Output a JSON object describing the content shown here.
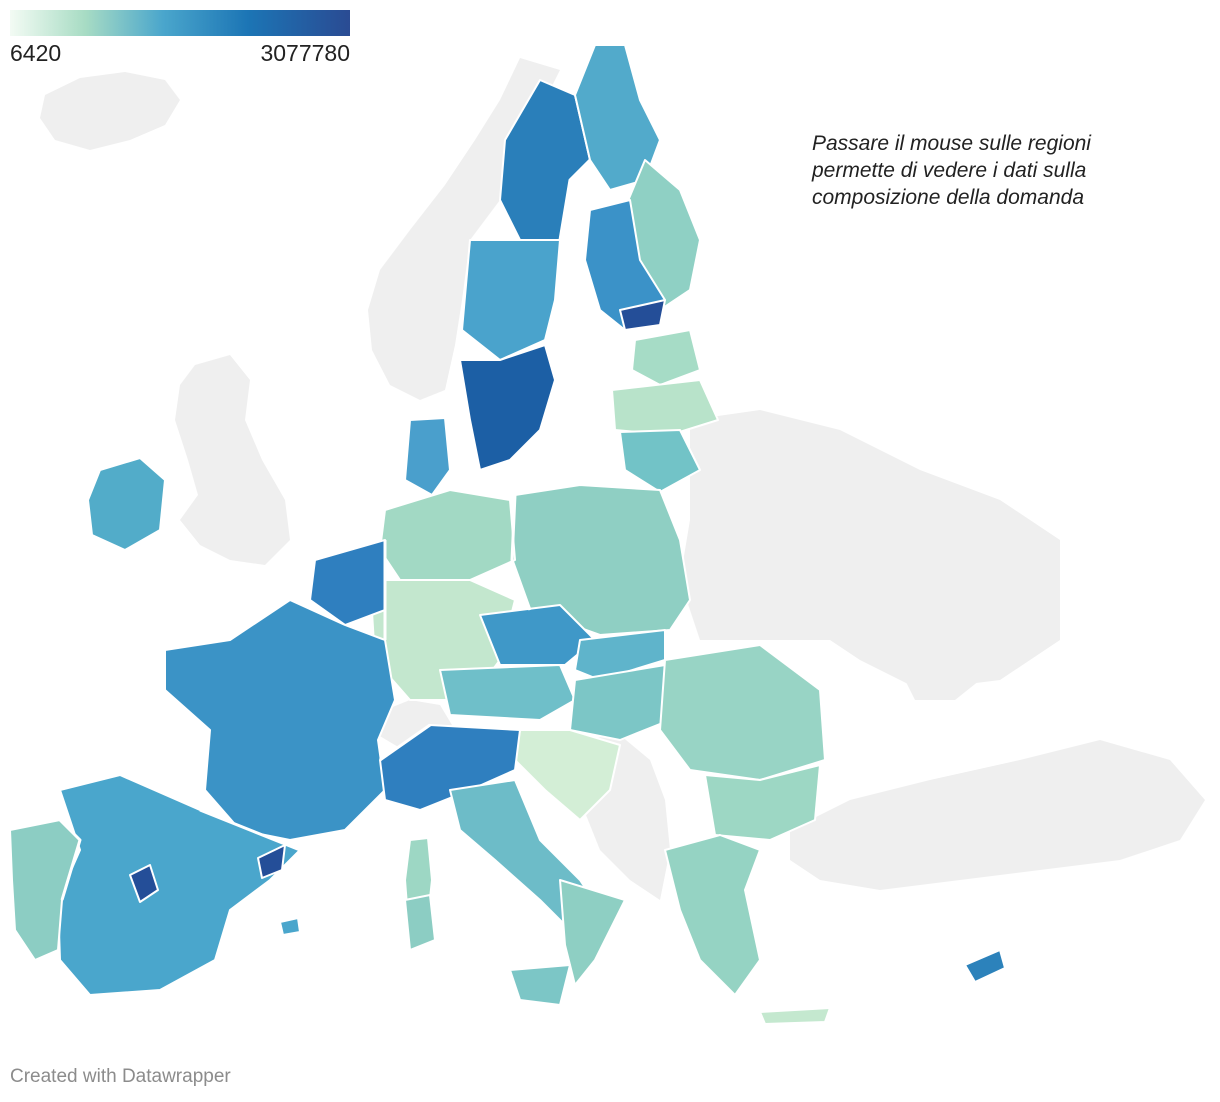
{
  "legend": {
    "min_label": "6420",
    "max_label": "3077780",
    "colors": [
      "#f3fbf4",
      "#a8dcc4",
      "#4aa6cc",
      "#1c75b5",
      "#2a4b93"
    ]
  },
  "annotation": "Passare il mouse sulle regioni permette di vedere i dati sulla composizione della domanda",
  "credit": "Created with Datawrapper",
  "colors": {
    "no_data": "#efefef",
    "border": "#ffffff",
    "country_border": "#ffffff"
  }
}
